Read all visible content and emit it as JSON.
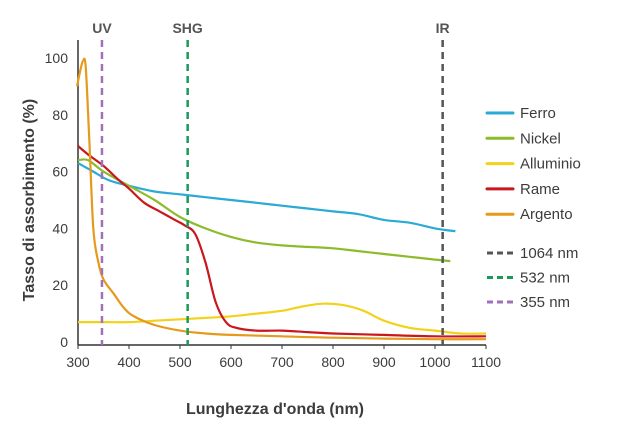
{
  "chart_data": {
    "type": "line",
    "xlabel": "Lunghezza d'onda (nm)",
    "ylabel": "Tasso di assorbimento (%)",
    "xlim": [
      300,
      1100
    ],
    "ylim": [
      0,
      100
    ],
    "xticks": [
      300,
      400,
      500,
      600,
      700,
      800,
      900,
      1000,
      1100
    ],
    "yticks": [
      0,
      20,
      40,
      60,
      80,
      100
    ],
    "legend_position": "right",
    "series": [
      {
        "name": "Ferro",
        "color": "#2aaad4",
        "points": [
          [
            300,
            63
          ],
          [
            330,
            60
          ],
          [
            360,
            57
          ],
          [
            400,
            55
          ],
          [
            450,
            53
          ],
          [
            500,
            52
          ],
          [
            550,
            51
          ],
          [
            600,
            50
          ],
          [
            650,
            49
          ],
          [
            700,
            48
          ],
          [
            750,
            47
          ],
          [
            800,
            46
          ],
          [
            850,
            45
          ],
          [
            900,
            43
          ],
          [
            950,
            42
          ],
          [
            1000,
            40
          ],
          [
            1040,
            39
          ]
        ]
      },
      {
        "name": "Nickel",
        "color": "#8cbb2c",
        "points": [
          [
            300,
            64
          ],
          [
            320,
            64
          ],
          [
            350,
            60
          ],
          [
            400,
            55
          ],
          [
            450,
            50
          ],
          [
            500,
            44
          ],
          [
            550,
            40
          ],
          [
            600,
            37
          ],
          [
            650,
            35
          ],
          [
            700,
            34
          ],
          [
            750,
            33.5
          ],
          [
            800,
            33
          ],
          [
            850,
            32
          ],
          [
            900,
            31
          ],
          [
            950,
            30
          ],
          [
            1000,
            29
          ],
          [
            1030,
            28.5
          ]
        ]
      },
      {
        "name": "Alluminio",
        "color": "#f3d21c",
        "points": [
          [
            300,
            7
          ],
          [
            350,
            7
          ],
          [
            400,
            7
          ],
          [
            450,
            7.5
          ],
          [
            500,
            8
          ],
          [
            550,
            8.5
          ],
          [
            600,
            9
          ],
          [
            650,
            10
          ],
          [
            700,
            11
          ],
          [
            740,
            12.5
          ],
          [
            780,
            13.5
          ],
          [
            820,
            13
          ],
          [
            860,
            11
          ],
          [
            900,
            7.5
          ],
          [
            950,
            5
          ],
          [
            1000,
            4
          ],
          [
            1050,
            3
          ],
          [
            1100,
            3
          ]
        ]
      },
      {
        "name": "Rame",
        "color": "#c8171d",
        "points": [
          [
            300,
            69
          ],
          [
            320,
            66
          ],
          [
            350,
            62
          ],
          [
            380,
            57
          ],
          [
            400,
            54
          ],
          [
            430,
            49
          ],
          [
            460,
            46
          ],
          [
            490,
            43
          ],
          [
            510,
            41
          ],
          [
            530,
            38
          ],
          [
            550,
            28
          ],
          [
            570,
            14
          ],
          [
            590,
            7
          ],
          [
            610,
            5
          ],
          [
            650,
            4
          ],
          [
            700,
            4
          ],
          [
            750,
            3.5
          ],
          [
            800,
            3
          ],
          [
            900,
            2.5
          ],
          [
            1000,
            2
          ],
          [
            1100,
            2
          ]
        ]
      },
      {
        "name": "Argento",
        "color": "#e59a1c",
        "points": [
          [
            298,
            90
          ],
          [
            305,
            96
          ],
          [
            310,
            99
          ],
          [
            315,
            97
          ],
          [
            322,
            72
          ],
          [
            330,
            40
          ],
          [
            340,
            28
          ],
          [
            350,
            22
          ],
          [
            370,
            17
          ],
          [
            390,
            12
          ],
          [
            410,
            9
          ],
          [
            450,
            6
          ],
          [
            500,
            4
          ],
          [
            550,
            3
          ],
          [
            600,
            2.5
          ],
          [
            700,
            2
          ],
          [
            800,
            1.5
          ],
          [
            900,
            1.2
          ],
          [
            1000,
            1
          ],
          [
            1100,
            1
          ]
        ]
      }
    ],
    "reference_lines": [
      {
        "name": "1064 nm",
        "label": "IR",
        "x": 1015,
        "color": "#555555"
      },
      {
        "name": "532 nm",
        "label": "SHG",
        "x": 515,
        "color": "#1a9a5a"
      },
      {
        "name": "355 nm",
        "label": "UV",
        "x": 347,
        "color": "#a070b8"
      }
    ]
  }
}
